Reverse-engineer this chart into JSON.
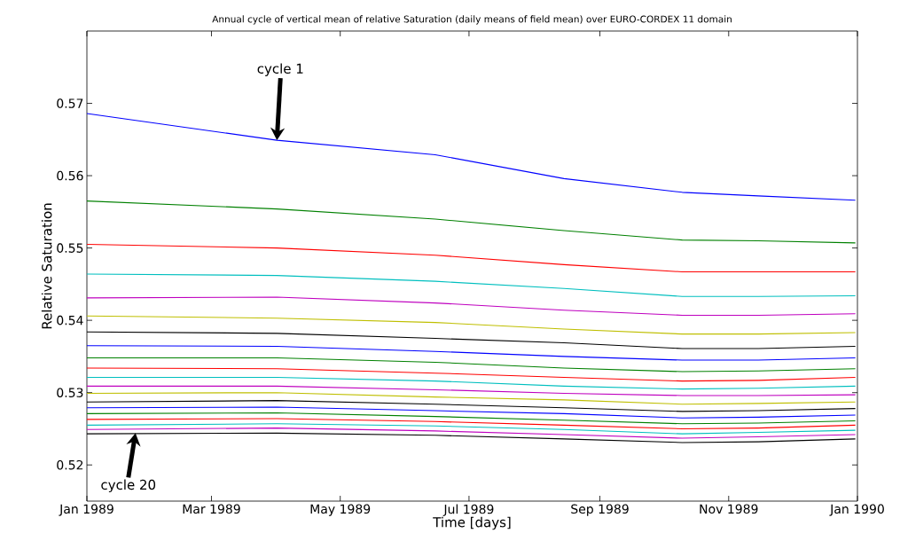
{
  "chart_data": {
    "type": "line",
    "title": "Annual cycle of vertical mean of relative Saturation (daily means of field mean) over EURO-CORDEX 11 domain",
    "xlabel": "Time [days]",
    "ylabel": "Relative Saturation",
    "x": [
      "1989-01-01",
      "1989-04-01",
      "1989-06-15",
      "1989-08-15",
      "1989-10-10",
      "1989-11-15",
      "1989-12-31"
    ],
    "series": [
      {
        "color": "#0000ff",
        "values": [
          0.5686,
          0.5649,
          0.5629,
          0.5596,
          0.5577,
          0.5572,
          0.5566
        ]
      },
      {
        "color": "#008000",
        "values": [
          0.5565,
          0.5554,
          0.554,
          0.5524,
          0.5511,
          0.551,
          0.5507
        ]
      },
      {
        "color": "#ff0000",
        "values": [
          0.5505,
          0.55,
          0.549,
          0.5477,
          0.5467,
          0.5467,
          0.5467
        ]
      },
      {
        "color": "#00bfbf",
        "values": [
          0.5464,
          0.5462,
          0.5454,
          0.5444,
          0.5433,
          0.5433,
          0.5434
        ]
      },
      {
        "color": "#bf00bf",
        "values": [
          0.5431,
          0.5432,
          0.5424,
          0.5414,
          0.5407,
          0.5407,
          0.5409
        ]
      },
      {
        "color": "#bfbf00",
        "values": [
          0.5406,
          0.5403,
          0.5397,
          0.5388,
          0.5381,
          0.5381,
          0.5383
        ]
      },
      {
        "color": "#000000",
        "values": [
          0.5384,
          0.5382,
          0.5375,
          0.5369,
          0.5361,
          0.5361,
          0.5364
        ]
      },
      {
        "color": "#0000ff",
        "values": [
          0.5365,
          0.5364,
          0.5357,
          0.535,
          0.5345,
          0.5345,
          0.5348
        ]
      },
      {
        "color": "#008000",
        "values": [
          0.5348,
          0.5348,
          0.5342,
          0.5334,
          0.5329,
          0.533,
          0.5333
        ]
      },
      {
        "color": "#ff0000",
        "values": [
          0.5334,
          0.5333,
          0.5327,
          0.5321,
          0.5316,
          0.5317,
          0.5321
        ]
      },
      {
        "color": "#00bfbf",
        "values": [
          0.5321,
          0.5321,
          0.5316,
          0.5309,
          0.5305,
          0.5306,
          0.5309
        ]
      },
      {
        "color": "#bf00bf",
        "values": [
          0.5309,
          0.5309,
          0.5304,
          0.5299,
          0.5296,
          0.5296,
          0.5297
        ]
      },
      {
        "color": "#bfbf00",
        "values": [
          0.5299,
          0.53,
          0.5294,
          0.529,
          0.5284,
          0.5285,
          0.5287
        ]
      },
      {
        "color": "#000000",
        "values": [
          0.5287,
          0.5289,
          0.5284,
          0.5279,
          0.5274,
          0.5275,
          0.5278
        ]
      },
      {
        "color": "#0000ff",
        "values": [
          0.5279,
          0.528,
          0.5275,
          0.5271,
          0.5265,
          0.5266,
          0.5269
        ]
      },
      {
        "color": "#008000",
        "values": [
          0.5271,
          0.5272,
          0.5267,
          0.5262,
          0.5257,
          0.5258,
          0.5261
        ]
      },
      {
        "color": "#ff0000",
        "values": [
          0.5263,
          0.5264,
          0.526,
          0.5255,
          0.525,
          0.5251,
          0.5255
        ]
      },
      {
        "color": "#00bfbf",
        "values": [
          0.5255,
          0.5257,
          0.5254,
          0.5249,
          0.5243,
          0.5245,
          0.5248
        ]
      },
      {
        "color": "#bf00bf",
        "values": [
          0.5249,
          0.5251,
          0.5247,
          0.5242,
          0.5237,
          0.5239,
          0.5242
        ]
      },
      {
        "color": "#000000",
        "values": [
          0.5243,
          0.5244,
          0.5241,
          0.5236,
          0.5231,
          0.5232,
          0.5236
        ]
      }
    ],
    "annotations": [
      {
        "text": "cycle 1",
        "x": "1989-04-01",
        "y": 0.5649
      },
      {
        "text": "cycle 20",
        "x": "1989-01-24",
        "y": 0.5244
      }
    ],
    "xlim": [
      "1989-01-01",
      "1990-01-01"
    ],
    "xticks": [
      {
        "value": "1989-01-01",
        "label": "Jan 1989"
      },
      {
        "value": "1989-03-01",
        "label": "Mar 1989"
      },
      {
        "value": "1989-05-01",
        "label": "May 1989"
      },
      {
        "value": "1989-07-01",
        "label": "Jul 1989"
      },
      {
        "value": "1989-09-01",
        "label": "Sep 1989"
      },
      {
        "value": "1989-11-01",
        "label": "Nov 1989"
      },
      {
        "value": "1990-01-01",
        "label": "Jan 1990"
      }
    ],
    "ylim": [
      0.515,
      0.58
    ],
    "yticks": [
      0.52,
      0.53,
      0.54,
      0.55,
      0.56,
      0.57
    ]
  }
}
